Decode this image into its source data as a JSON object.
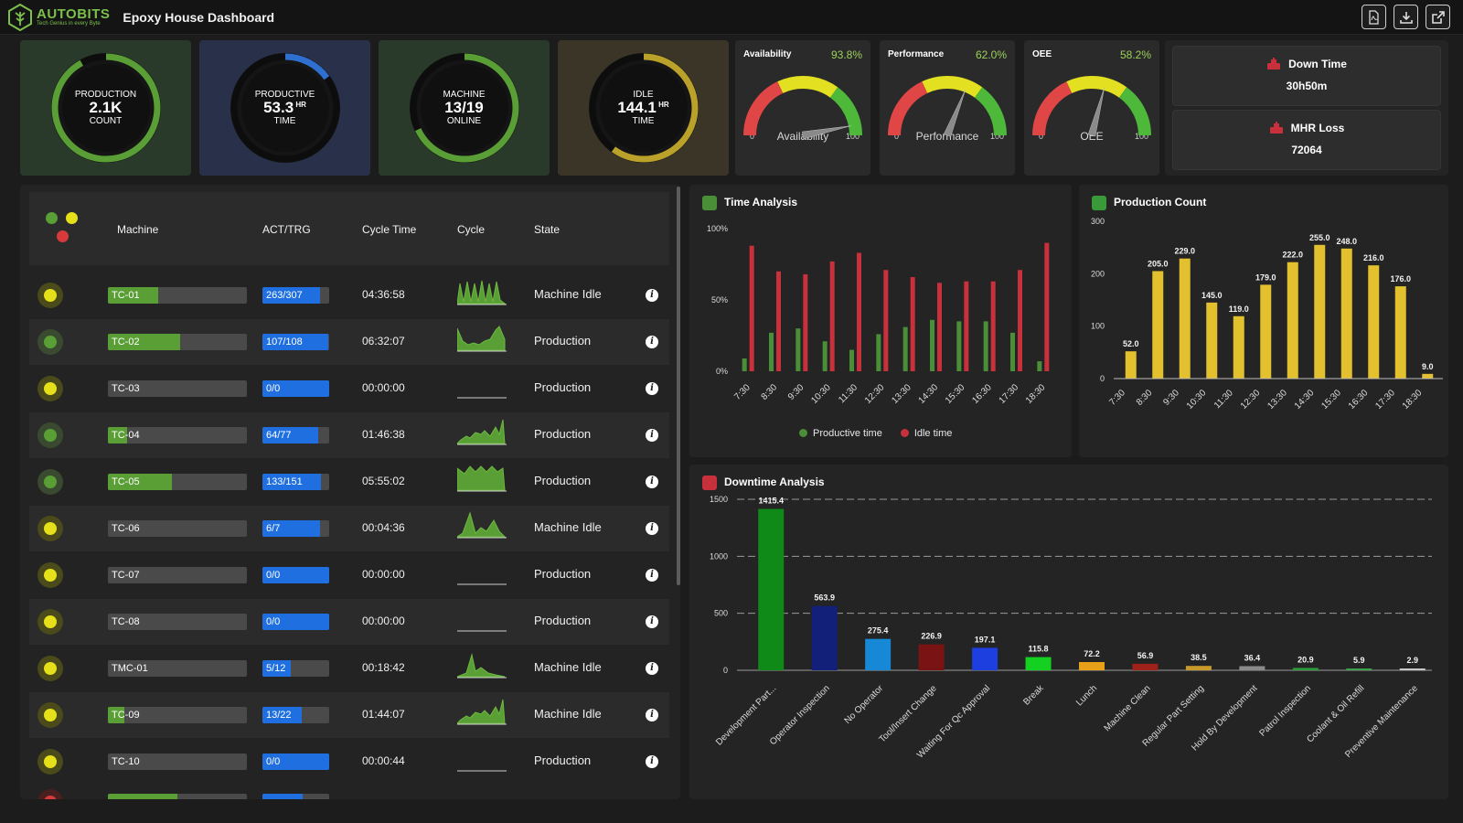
{
  "header": {
    "logo_name": "AUTOBITS",
    "logo_tagline": "Tech Genius in every Byte",
    "title": "Epoxy House Dashboard",
    "actions": [
      "pdf-export-icon",
      "download-icon",
      "external-link-icon"
    ]
  },
  "kpis": [
    {
      "label": "PRODUCTION",
      "value": "2.1K",
      "unit": "",
      "sublabel": "COUNT",
      "ring_fraction": 0.92,
      "ring_color": "#5a9e36",
      "bg": "#2a3a2a"
    },
    {
      "label": "PRODUCTIVE",
      "value": "53.3",
      "unit": "HR",
      "sublabel": "TIME",
      "ring_fraction": 0.15,
      "ring_color": "#2f6fd0",
      "bg": "#29304a"
    },
    {
      "label": "MACHINE",
      "value": "13/19",
      "unit": "",
      "sublabel": "ONLINE",
      "ring_fraction": 0.68,
      "ring_color": "#5a9e36",
      "bg": "#2a3a2a"
    },
    {
      "label": "IDLE",
      "value": "144.1",
      "unit": "HR",
      "sublabel": "TIME",
      "ring_fraction": 0.6,
      "ring_color": "#b9a12a",
      "bg": "#3a3526"
    }
  ],
  "gauges": [
    {
      "title": "Availability",
      "percent": "93.8%",
      "value": 93.8,
      "name": "Availability",
      "min": "0",
      "max": "100"
    },
    {
      "title": "Performance",
      "percent": "62.0%",
      "value": 62.0,
      "name": "Performance",
      "min": "0",
      "max": "100"
    },
    {
      "title": "OEE",
      "percent": "58.2%",
      "value": 58.2,
      "name": "OEE",
      "min": "0",
      "max": "100"
    }
  ],
  "downtime": {
    "title": "Down Time",
    "value": "30h50m"
  },
  "mhr_loss": {
    "title": "MHR Loss",
    "value": "72064"
  },
  "table": {
    "columns": [
      "Machine",
      "ACT/TRG",
      "Cycle Time",
      "Cycle",
      "State"
    ],
    "status_colors": {
      "green": "#5a9e36",
      "yellow": "#e5e01a",
      "red": "#d63a3a"
    },
    "rows": [
      {
        "status": "yellow",
        "machine": "TC-01",
        "machine_progress": 0.36,
        "act_trg": "263/307",
        "act_progress": 0.86,
        "cycle_time": "04:36:58",
        "cycle_shape": "spiky",
        "state": "Machine Idle"
      },
      {
        "status": "green",
        "machine": "TC-02",
        "machine_progress": 0.52,
        "act_trg": "107/108",
        "act_progress": 0.99,
        "cycle_time": "06:32:07",
        "cycle_shape": "valley",
        "state": "Production"
      },
      {
        "status": "yellow",
        "machine": "TC-03",
        "machine_progress": 0,
        "act_trg": "0/0",
        "act_progress": 1.0,
        "cycle_time": "00:00:00",
        "cycle_shape": "flat",
        "state": "Production"
      },
      {
        "status": "green",
        "machine": "TC-04",
        "machine_progress": 0.14,
        "act_trg": "64/77",
        "act_progress": 0.83,
        "cycle_time": "01:46:38",
        "cycle_shape": "rise",
        "state": "Production"
      },
      {
        "status": "green",
        "machine": "TC-05",
        "machine_progress": 0.46,
        "act_trg": "133/151",
        "act_progress": 0.88,
        "cycle_time": "05:55:02",
        "cycle_shape": "plateau",
        "state": "Production"
      },
      {
        "status": "yellow",
        "machine": "TC-06",
        "machine_progress": 0,
        "act_trg": "6/7",
        "act_progress": 0.86,
        "cycle_time": "00:04:36",
        "cycle_shape": "double",
        "state": "Machine Idle"
      },
      {
        "status": "yellow",
        "machine": "TC-07",
        "machine_progress": 0,
        "act_trg": "0/0",
        "act_progress": 1.0,
        "cycle_time": "00:00:00",
        "cycle_shape": "flat",
        "state": "Production"
      },
      {
        "status": "yellow",
        "machine": "TC-08",
        "machine_progress": 0,
        "act_trg": "0/0",
        "act_progress": 1.0,
        "cycle_time": "00:00:00",
        "cycle_shape": "flat",
        "state": "Production"
      },
      {
        "status": "yellow",
        "machine": "TMC-01",
        "machine_progress": 0,
        "act_trg": "5/12",
        "act_progress": 0.42,
        "cycle_time": "00:18:42",
        "cycle_shape": "single",
        "state": "Machine Idle"
      },
      {
        "status": "yellow",
        "machine": "TC-09",
        "machine_progress": 0.12,
        "act_trg": "13/22",
        "act_progress": 0.59,
        "cycle_time": "01:44:07",
        "cycle_shape": "rise",
        "state": "Machine Idle"
      },
      {
        "status": "yellow",
        "machine": "TC-10",
        "machine_progress": 0,
        "act_trg": "0/0",
        "act_progress": 1.0,
        "cycle_time": "00:00:44",
        "cycle_shape": "flat",
        "state": "Production"
      }
    ]
  },
  "chart_data": [
    {
      "type": "bar",
      "title": "Time Analysis",
      "categories": [
        "7:30",
        "8:30",
        "9:30",
        "10:30",
        "11:30",
        "12:30",
        "13:30",
        "14:30",
        "15:30",
        "16:30",
        "17:30",
        "18:30"
      ],
      "series": [
        {
          "name": "Productive time",
          "color": "#4a8f38",
          "values": [
            9,
            27,
            30,
            21,
            15,
            26,
            31,
            36,
            35,
            35,
            27,
            7
          ]
        },
        {
          "name": "Idle time",
          "color": "#c8303c",
          "values": [
            88,
            70,
            68,
            77,
            83,
            71,
            66,
            62,
            63,
            63,
            71,
            90
          ]
        }
      ],
      "yticks": [
        "0%",
        "50%",
        "100%"
      ],
      "ylim": [
        0,
        100
      ]
    },
    {
      "type": "bar",
      "title": "Production Count",
      "categories": [
        "7:30",
        "8:30",
        "9:30",
        "10:30",
        "11:30",
        "12:30",
        "13:30",
        "14:30",
        "15:30",
        "16:30",
        "17:30",
        "18:30"
      ],
      "x_offset_half": true,
      "values": [
        52.0,
        205.0,
        229.0,
        145.0,
        119.0,
        179.0,
        222.0,
        255.0,
        248.0,
        216.0,
        176.0,
        9.0
      ],
      "labels": [
        "52.0",
        "205.0",
        "229.0",
        "145.0",
        "119.0",
        "179.0",
        "222.0",
        "255.0",
        "248.0",
        "216.0",
        "176.0",
        "9.0"
      ],
      "color": "#e2c02e",
      "yticks": [
        "0",
        "100",
        "200",
        "300"
      ],
      "ylim": [
        0,
        300
      ]
    },
    {
      "type": "bar",
      "title": "Downtime Analysis",
      "categories": [
        "Development Part...",
        "Operator Inspection",
        "No Operator",
        "Tool/Insert Change",
        "Waiting For Qc Approval",
        "Break",
        "Lunch",
        "Machine Clean",
        "Regular Part Setting",
        "Hold By Development",
        "Patrol Inspection",
        "Coolant & Oil Refill",
        "Preventive Maintenance"
      ],
      "values": [
        1415.4,
        563.9,
        275.4,
        226.9,
        197.1,
        115.8,
        72.2,
        56.9,
        38.5,
        36.4,
        20.9,
        5.9,
        2.9
      ],
      "labels": [
        "1415.4",
        "563.9",
        "275.4",
        "226.9",
        "197.1",
        "115.8",
        "72.2",
        "56.9",
        "38.5",
        "36.4",
        "20.9",
        "5.9",
        "2.9"
      ],
      "colors": [
        "#0f8a18",
        "#13207a",
        "#1688d6",
        "#7a1414",
        "#1d3fe0",
        "#14d020",
        "#e8a018",
        "#a0201a",
        "#c89a2a",
        "#8a8a8a",
        "#2a9a3a",
        "#3aa04a",
        "#c8c8c8"
      ],
      "yticks": [
        "0",
        "500",
        "1000",
        "1500"
      ],
      "ylim": [
        0,
        1500
      ]
    }
  ]
}
